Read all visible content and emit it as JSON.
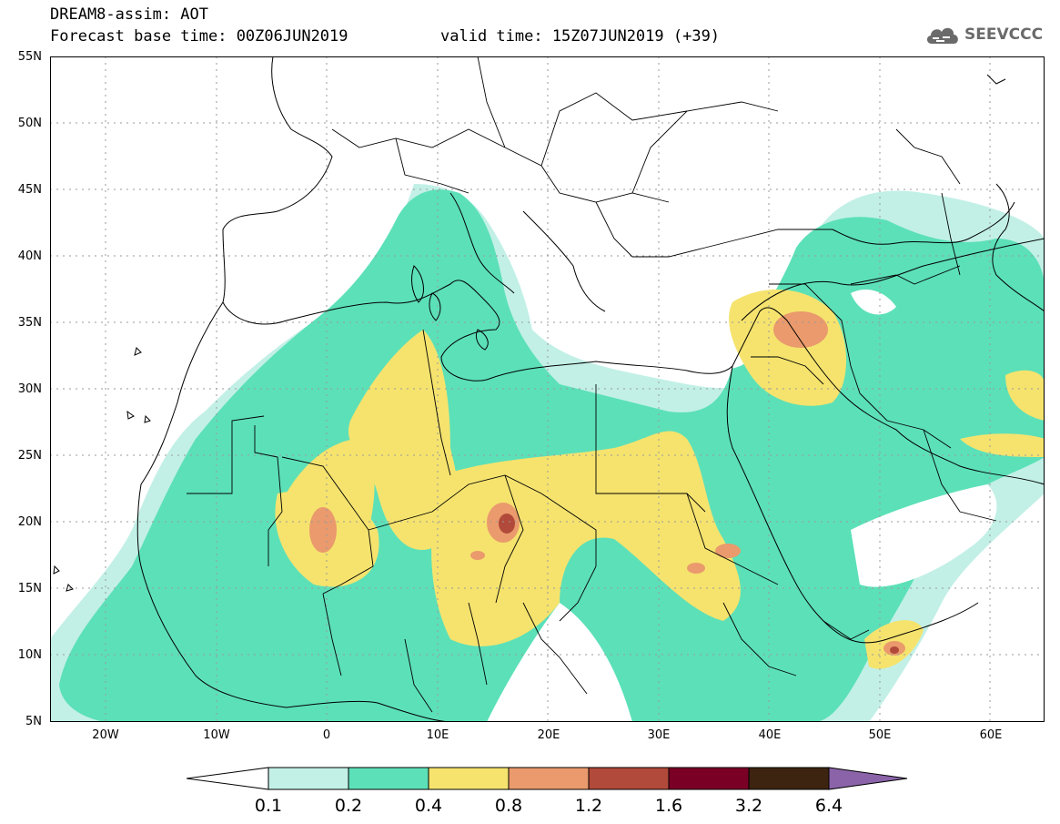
{
  "header": {
    "title_line1": "DREAM8-assim: AOT",
    "forecast_base": "Forecast base time: 00Z06JUN2019",
    "valid_time": "valid time: 15Z07JUN2019 (+39)"
  },
  "logo": {
    "text": "SEEVCCC",
    "icon": "cloud-icon",
    "color": "#6a6a6a"
  },
  "axes": {
    "lat_labels": [
      "55N",
      "50N",
      "45N",
      "40N",
      "35N",
      "30N",
      "25N",
      "20N",
      "15N",
      "10N",
      "5N"
    ],
    "lon_labels": [
      "20W",
      "10W",
      "0",
      "10E",
      "20E",
      "30E",
      "40E",
      "50E",
      "60E"
    ]
  },
  "colorbar": {
    "labels": [
      "0.1",
      "0.2",
      "0.4",
      "0.8",
      "1.2",
      "1.6",
      "3.2",
      "6.4"
    ],
    "colors": [
      "#ffffff",
      "#c2f0e6",
      "#5ce0b8",
      "#f5e36e",
      "#ea9a6c",
      "#b14a3a",
      "#7a0026",
      "#3d2410",
      "#8a63a8"
    ]
  }
}
